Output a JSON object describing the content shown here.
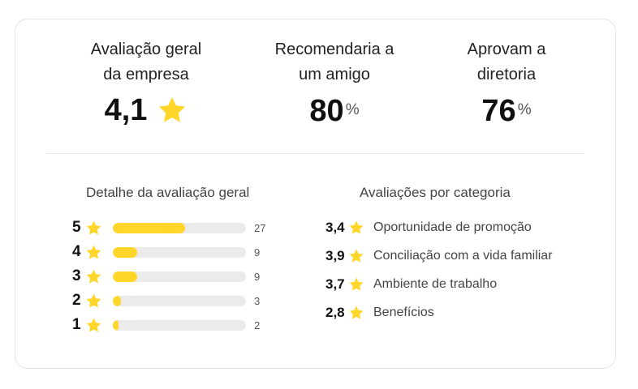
{
  "summary": {
    "overall": {
      "label_line1": "Avaliação geral",
      "label_line2": "da empresa",
      "value": "4,1"
    },
    "recommend": {
      "label_line1": "Recomendaria a",
      "label_line2": "um amigo",
      "value": "80",
      "unit": "%"
    },
    "approve": {
      "label_line1": "Aprovam a",
      "label_line2": "diretoria",
      "value": "76",
      "unit": "%"
    }
  },
  "distribution": {
    "title": "Detalhe da avaliação geral",
    "rows": [
      {
        "stars": "5",
        "count": "27",
        "fraction": 0.54
      },
      {
        "stars": "4",
        "count": "9",
        "fraction": 0.18
      },
      {
        "stars": "3",
        "count": "9",
        "fraction": 0.18
      },
      {
        "stars": "2",
        "count": "3",
        "fraction": 0.06
      },
      {
        "stars": "1",
        "count": "2",
        "fraction": 0.04
      }
    ]
  },
  "categories": {
    "title": "Avaliações por categoria",
    "items": [
      {
        "score": "3,4",
        "label": "Oportunidade de promoção"
      },
      {
        "score": "3,9",
        "label": "Conciliação com a vida familiar"
      },
      {
        "score": "3,7",
        "label": "Ambiente de trabalho"
      },
      {
        "score": "2,8",
        "label": "Benefícios"
      }
    ]
  },
  "colors": {
    "accent": "#ffd629",
    "bar_track": "#ebebeb"
  },
  "icons": {
    "star": "star-icon"
  }
}
